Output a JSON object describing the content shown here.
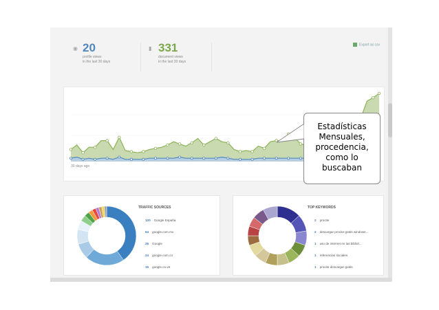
{
  "stats": {
    "profile": {
      "icon": "eye-icon",
      "value": "20",
      "line1": "profile views",
      "line2": "in the last 30 days"
    },
    "documents": {
      "icon": "document-icon",
      "value": "331",
      "line1": "document views",
      "line2": "in the last 30 days"
    },
    "export_label": "Export as csv"
  },
  "chart_data": {
    "type": "area",
    "x_start_label": "30 days ago",
    "series": [
      {
        "values": [
          11,
          15,
          8,
          13,
          13,
          19,
          19,
          11,
          22,
          10,
          9,
          8,
          9,
          11,
          12,
          13,
          15,
          18,
          16,
          14,
          17,
          21,
          15,
          18,
          21,
          18,
          17,
          11,
          9,
          10,
          9,
          14,
          12,
          18,
          19,
          19,
          25,
          22,
          16,
          15,
          18,
          15,
          13,
          11,
          16,
          24,
          30,
          28,
          40,
          55,
          58,
          62
        ]
      },
      {
        "values": [
          3,
          4,
          2,
          3,
          2,
          3,
          3,
          2,
          4,
          2,
          2,
          2,
          2,
          3,
          3,
          3,
          3,
          3,
          4,
          3,
          3,
          3,
          3,
          3,
          3,
          4,
          3,
          2,
          2,
          2,
          2,
          3,
          3,
          3,
          3,
          3,
          3,
          3,
          3,
          3,
          3,
          3,
          2,
          3,
          3,
          3,
          3,
          3,
          3,
          3,
          3,
          3
        ]
      }
    ],
    "colors": {
      "views": "#8cb357",
      "views_fill": "#c9d9b0",
      "docs": "#4f87bf"
    }
  },
  "traffic": {
    "title": "TRAFFIC SOURCES",
    "items": [
      {
        "count": "120",
        "label": "Google España"
      },
      {
        "count": "64",
        "label": "google.com.mx"
      },
      {
        "count": "25",
        "label": "Google"
      },
      {
        "count": "24",
        "label": "google.com.co"
      },
      {
        "count": "15",
        "label": "google.co.ve"
      }
    ],
    "donut": [
      {
        "value": 120,
        "color": "#3a7fbf"
      },
      {
        "value": 64,
        "color": "#6ea9d8"
      },
      {
        "value": 25,
        "color": "#a9cbe8"
      },
      {
        "value": 24,
        "color": "#d3e4f2"
      },
      {
        "value": 15,
        "color": "#e8f0f8"
      },
      {
        "value": 10,
        "color": "#8fcf8a"
      },
      {
        "value": 8,
        "color": "#4ea34b"
      },
      {
        "value": 7,
        "color": "#f19a3e"
      },
      {
        "value": 6,
        "color": "#e8473f"
      },
      {
        "value": 5,
        "color": "#b57ad0"
      },
      {
        "value": 5,
        "color": "#c7a36a"
      },
      {
        "value": 4,
        "color": "#f5d34c"
      },
      {
        "value": 4,
        "color": "#9aa7b3"
      }
    ]
  },
  "keywords": {
    "title": "TOP KEYWORDS",
    "items": [
      {
        "count": "2",
        "label": "procite"
      },
      {
        "count": "2",
        "label": "descargar procite gratis windows..."
      },
      {
        "count": "1",
        "label": "uso de internet en las bibliot..."
      },
      {
        "count": "1",
        "label": "referencias sociales"
      },
      {
        "count": "1",
        "label": "procite descargar gratis"
      }
    ],
    "donut": [
      {
        "value": 10,
        "color": "#2f2f8f"
      },
      {
        "value": 7,
        "color": "#5555b8"
      },
      {
        "value": 6,
        "color": "#8a87d0"
      },
      {
        "value": 5,
        "color": "#6f8e3a"
      },
      {
        "value": 5,
        "color": "#9bb55a"
      },
      {
        "value": 5,
        "color": "#c6c18a"
      },
      {
        "value": 5,
        "color": "#b0a05b"
      },
      {
        "value": 5,
        "color": "#d4c79b"
      },
      {
        "value": 5,
        "color": "#e3d99e"
      },
      {
        "value": 4,
        "color": "#9c6b3f"
      },
      {
        "value": 4,
        "color": "#b84244"
      },
      {
        "value": 4,
        "color": "#d6686a"
      },
      {
        "value": 5,
        "color": "#7a5a8a"
      },
      {
        "value": 6,
        "color": "#a9a7cf"
      }
    ]
  },
  "callout": {
    "text": "Estadísticas\nMensuales,\nprocedencia,\ncomo lo\nbuscaban"
  }
}
